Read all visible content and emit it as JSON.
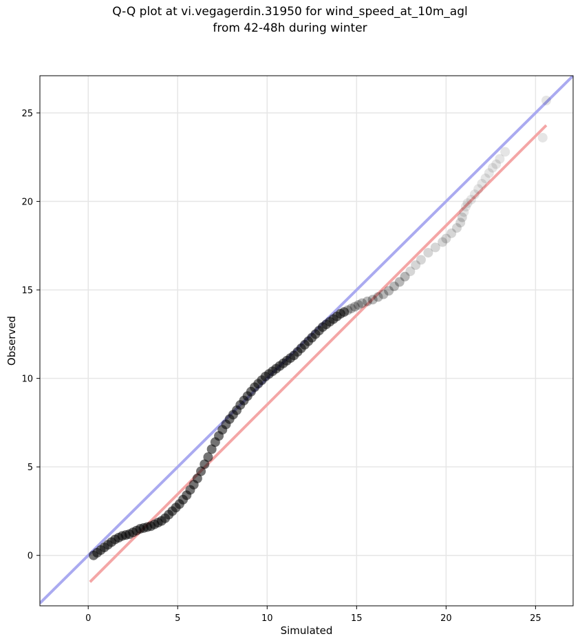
{
  "title": {
    "line1": "Q-Q plot at vi.vegagerdin.31950 for wind_speed_at_10m_agl",
    "line2": "from 42-48h during winter"
  },
  "colors": {
    "identity_line": "#aaaaf0",
    "fit_line": "#f4a6a6",
    "points": "#000000",
    "grid": "#e6e6e6"
  },
  "chart_data": {
    "type": "scatter",
    "xlabel": "Simulated",
    "ylabel": "Observed",
    "xlim": [
      -2.7,
      27.1
    ],
    "ylim": [
      -2.85,
      27.1
    ],
    "xticks": [
      0,
      5,
      10,
      15,
      20,
      25
    ],
    "yticks": [
      0,
      5,
      10,
      15,
      20,
      25
    ],
    "grid": true,
    "lines": [
      {
        "role": "identity",
        "x": [
          -2.7,
          27.1
        ],
        "y": [
          -2.7,
          27.1
        ]
      },
      {
        "role": "fit",
        "x": [
          0.1,
          25.6
        ],
        "y": [
          -1.5,
          24.3
        ]
      }
    ],
    "points": {
      "x": [
        0.3,
        0.5,
        0.7,
        0.9,
        1.1,
        1.3,
        1.5,
        1.7,
        1.9,
        2.1,
        2.3,
        2.5,
        2.7,
        2.9,
        3.1,
        3.3,
        3.5,
        3.7,
        3.9,
        4.1,
        4.3,
        4.5,
        4.7,
        4.9,
        5.1,
        5.3,
        5.5,
        5.7,
        5.9,
        6.1,
        6.3,
        6.5,
        6.7,
        6.9,
        7.1,
        7.3,
        7.5,
        7.7,
        7.9,
        8.1,
        8.3,
        8.5,
        8.7,
        8.9,
        9.1,
        9.3,
        9.5,
        9.7,
        9.9,
        10.1,
        10.3,
        10.5,
        10.7,
        10.9,
        11.1,
        11.3,
        11.5,
        11.7,
        11.9,
        12.1,
        12.3,
        12.5,
        12.7,
        12.9,
        13.1,
        13.3,
        13.5,
        13.7,
        13.9,
        14.1,
        14.3,
        14.5,
        14.7,
        14.9,
        15.1,
        15.3,
        15.6,
        15.9,
        16.2,
        16.5,
        16.8,
        17.1,
        17.4,
        17.7,
        18.0,
        18.3,
        18.6,
        19.0,
        19.4,
        19.8,
        20.0,
        20.3,
        20.6,
        20.8,
        20.9,
        21.0,
        21.1,
        21.2,
        21.4,
        21.6,
        21.8,
        22.0,
        22.2,
        22.4,
        22.6,
        22.8,
        23.0,
        23.3,
        25.4,
        25.6
      ],
      "y": [
        0.0,
        0.15,
        0.3,
        0.45,
        0.6,
        0.75,
        0.9,
        1.0,
        1.1,
        1.15,
        1.2,
        1.3,
        1.4,
        1.5,
        1.55,
        1.6,
        1.65,
        1.75,
        1.85,
        1.95,
        2.1,
        2.3,
        2.5,
        2.7,
        2.9,
        3.15,
        3.4,
        3.7,
        4.0,
        4.35,
        4.75,
        5.15,
        5.55,
        6.0,
        6.4,
        6.75,
        7.1,
        7.4,
        7.7,
        7.95,
        8.2,
        8.5,
        8.75,
        9.0,
        9.25,
        9.5,
        9.7,
        9.9,
        10.1,
        10.25,
        10.4,
        10.55,
        10.7,
        10.85,
        11.0,
        11.15,
        11.3,
        11.5,
        11.7,
        11.9,
        12.1,
        12.3,
        12.5,
        12.7,
        12.9,
        13.05,
        13.2,
        13.35,
        13.5,
        13.65,
        13.75,
        13.85,
        13.95,
        14.05,
        14.15,
        14.25,
        14.35,
        14.45,
        14.6,
        14.75,
        14.95,
        15.2,
        15.45,
        15.75,
        16.05,
        16.4,
        16.7,
        17.1,
        17.4,
        17.7,
        17.9,
        18.2,
        18.5,
        18.8,
        19.1,
        19.4,
        19.7,
        19.9,
        20.1,
        20.4,
        20.7,
        21.0,
        21.3,
        21.6,
        21.9,
        22.1,
        22.4,
        22.8,
        23.6,
        25.7
      ]
    }
  }
}
